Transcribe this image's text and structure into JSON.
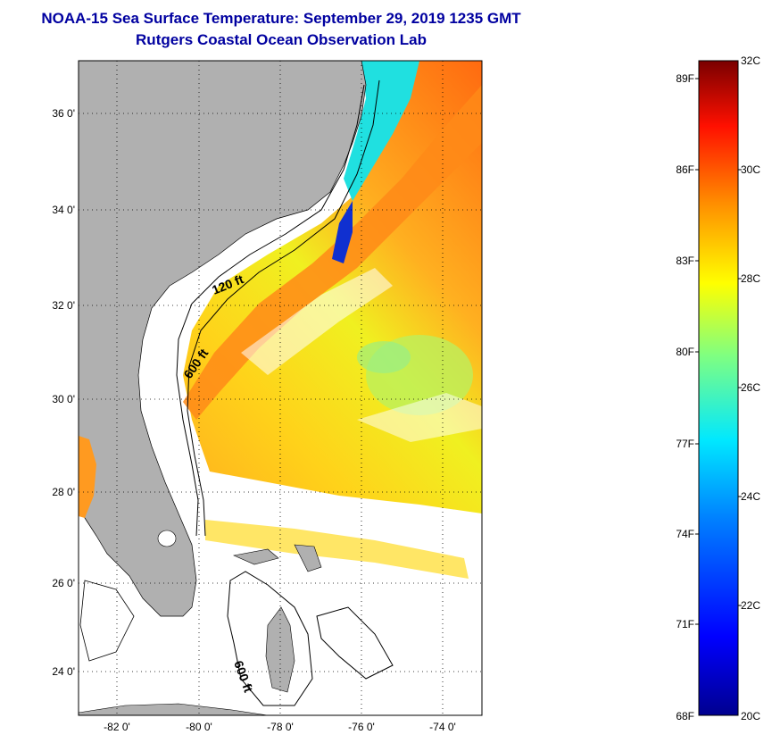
{
  "title": {
    "line1": "NOAA-15 Sea Surface Temperature:  September 29, 2019 1235 GMT",
    "line2": "Rutgers Coastal Ocean Observation Lab"
  },
  "map": {
    "lat_labels": [
      "36 0'",
      "34 0'",
      "32 0'",
      "30 0'",
      "28 0'",
      "26 0'",
      "24 0'"
    ],
    "lon_labels": [
      "-82 0'",
      "-80 0'",
      "-78 0'",
      "-76 0'",
      "-74 0'"
    ],
    "isobath_labels": [
      "120 ft",
      "600 ft",
      "600 ft"
    ],
    "colors": {
      "land": "#b0b0b0",
      "no_data": "#ffffff",
      "grid": "#000000"
    }
  },
  "colorbar": {
    "fahrenheit_labels": [
      "89F",
      "86F",
      "83F",
      "80F",
      "77F",
      "74F",
      "71F",
      "68F"
    ],
    "celsius_labels": [
      "32C",
      "30C",
      "28C",
      "26C",
      "24C",
      "22C",
      "20C"
    ],
    "range_c": [
      20,
      32
    ],
    "colors": [
      "#00008f",
      "#0000ff",
      "#0080ff",
      "#00ffff",
      "#80ff80",
      "#ffff00",
      "#ff8000",
      "#ff0000",
      "#800000"
    ]
  }
}
